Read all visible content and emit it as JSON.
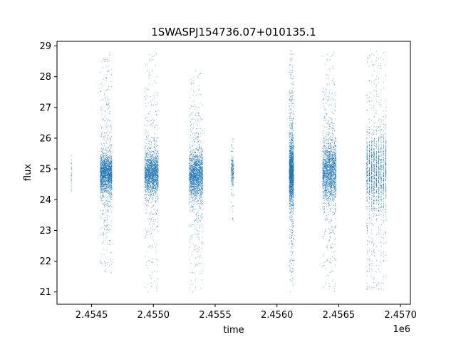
{
  "chart_data": {
    "type": "scatter",
    "title": "1SWASPJ154736.07+010135.1",
    "xlabel": "time",
    "ylabel": "flux",
    "x_offset_label": "1e6",
    "xlim": [
      2454220,
      2457080
    ],
    "ylim": [
      20.6,
      29.15
    ],
    "x_ticks": [
      2454500,
      2455000,
      2455500,
      2456000,
      2456500,
      2457000
    ],
    "x_tick_labels": [
      "2.4545",
      "2.4550",
      "2.4555",
      "2.4560",
      "2.4565",
      "2.4570"
    ],
    "y_ticks": [
      21,
      22,
      23,
      24,
      25,
      26,
      27,
      28,
      29
    ],
    "y_tick_labels": [
      "21",
      "22",
      "23",
      "24",
      "25",
      "26",
      "27",
      "28",
      "29"
    ],
    "grid": false,
    "marker_color": "#1f77b4",
    "seasons": [
      {
        "x_start": 2454335,
        "x_end": 2454340,
        "median": 24.95,
        "spread": 0.25,
        "y_min": 24.1,
        "y_max": 25.85,
        "density": "sparse"
      },
      {
        "x_start": 2454570,
        "x_end": 2454665,
        "median": 24.85,
        "spread": 0.3,
        "y_min": 21.6,
        "y_max": 28.8,
        "density": "dense"
      },
      {
        "x_start": 2454930,
        "x_end": 2455040,
        "median": 24.85,
        "spread": 0.3,
        "y_min": 21.0,
        "y_max": 28.85,
        "density": "dense"
      },
      {
        "x_start": 2455290,
        "x_end": 2455400,
        "median": 24.8,
        "spread": 0.35,
        "y_min": 21.0,
        "y_max": 28.2,
        "density": "dense"
      },
      {
        "x_start": 2455630,
        "x_end": 2455650,
        "median": 24.9,
        "spread": 0.25,
        "y_min": 23.3,
        "y_max": 26.0,
        "density": "medium"
      },
      {
        "x_start": 2456100,
        "x_end": 2456135,
        "median": 24.9,
        "spread": 0.45,
        "y_min": 21.0,
        "y_max": 28.85,
        "density": "dense"
      },
      {
        "x_start": 2456370,
        "x_end": 2456480,
        "median": 24.9,
        "spread": 0.45,
        "y_min": 21.0,
        "y_max": 28.85,
        "density": "dense"
      },
      {
        "x_start": 2456720,
        "x_end": 2456890,
        "median": 24.9,
        "spread": 0.6,
        "y_min": 21.05,
        "y_max": 28.85,
        "density": "banded"
      }
    ]
  }
}
